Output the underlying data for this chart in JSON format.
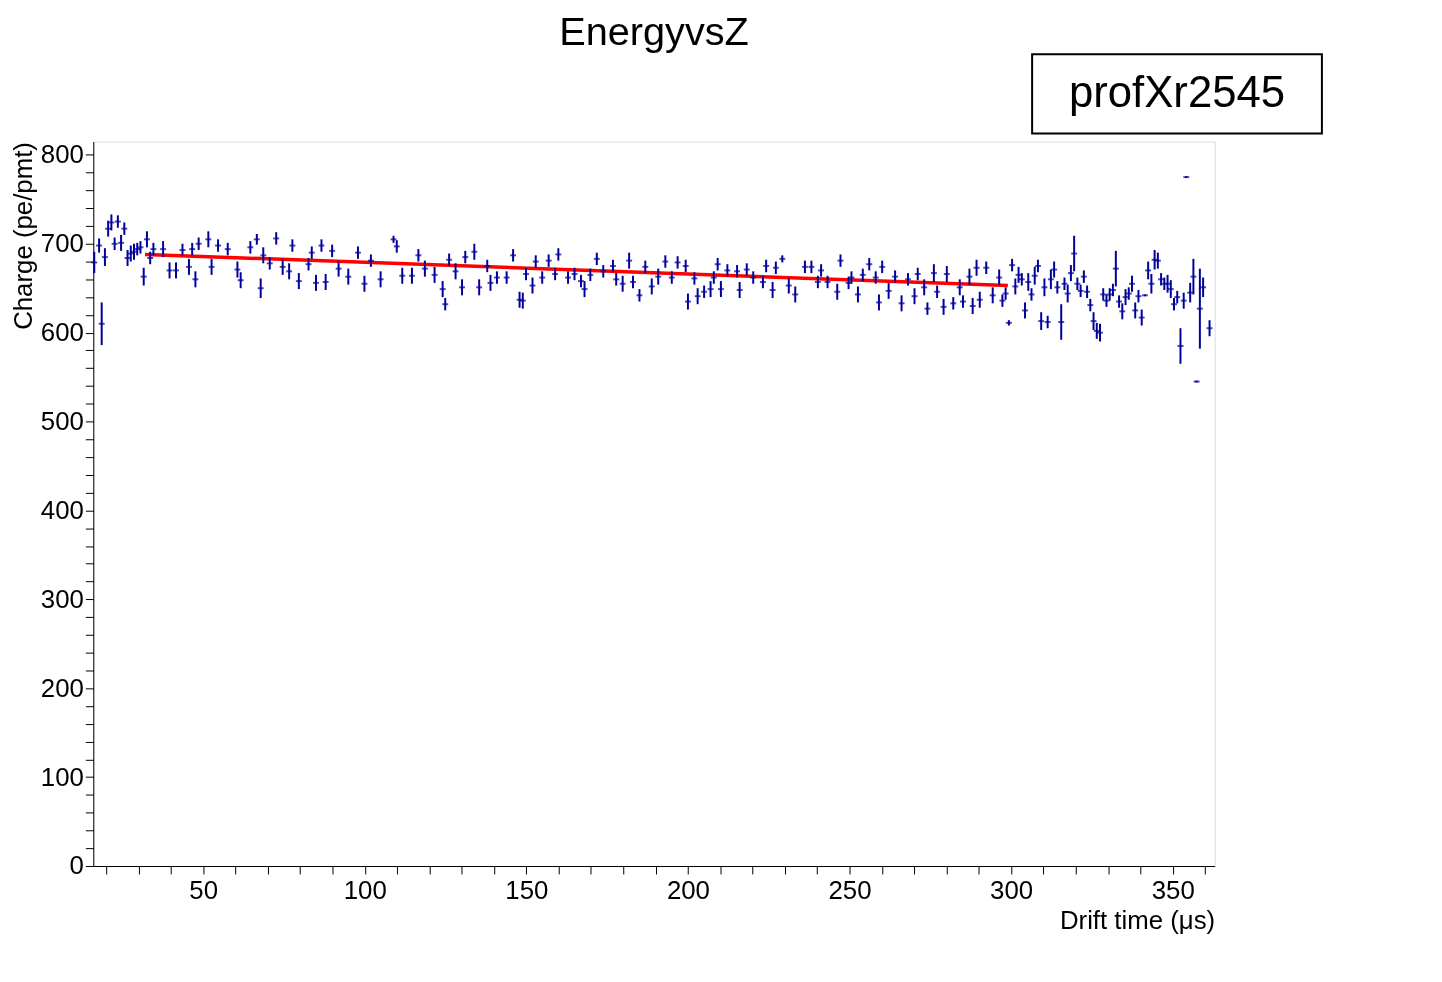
{
  "chart_data": {
    "type": "scatter",
    "title": "EnergyvsZ",
    "xlabel": "Drift time (μs)",
    "ylabel": "Charge (pe/pmt)",
    "annotations": [
      "profXr2545"
    ],
    "xlim": [
      16,
      363
    ],
    "ylim": [
      0,
      815
    ],
    "xticks": [
      {
        "value": 20,
        "label": null
      },
      {
        "value": 30,
        "label": null
      },
      {
        "value": 40,
        "label": null
      },
      50,
      {
        "value": 60,
        "label": null
      },
      {
        "value": 70,
        "label": null
      },
      {
        "value": 80,
        "label": null
      },
      {
        "value": 90,
        "label": null
      },
      100,
      {
        "value": 110,
        "label": null
      },
      {
        "value": 120,
        "label": null
      },
      {
        "value": 130,
        "label": null
      },
      {
        "value": 140,
        "label": null
      },
      150,
      {
        "value": 160,
        "label": null
      },
      {
        "value": 170,
        "label": null
      },
      {
        "value": 180,
        "label": null
      },
      {
        "value": 190,
        "label": null
      },
      200,
      {
        "value": 210,
        "label": null
      },
      {
        "value": 220,
        "label": null
      },
      {
        "value": 230,
        "label": null
      },
      {
        "value": 240,
        "label": null
      },
      250,
      {
        "value": 260,
        "label": null
      },
      {
        "value": 270,
        "label": null
      },
      {
        "value": 280,
        "label": null
      },
      {
        "value": 290,
        "label": null
      },
      300,
      {
        "value": 310,
        "label": null
      },
      {
        "value": 320,
        "label": null
      },
      {
        "value": 330,
        "label": null
      },
      {
        "value": 340,
        "label": null
      },
      350,
      {
        "value": 360,
        "label": null
      }
    ],
    "yticks": [
      0,
      {
        "value": 20,
        "label": null
      },
      {
        "value": 40,
        "label": null
      },
      {
        "value": 60,
        "label": null
      },
      {
        "value": 80,
        "label": null
      },
      100,
      {
        "value": 120,
        "label": null
      },
      {
        "value": 140,
        "label": null
      },
      {
        "value": 160,
        "label": null
      },
      {
        "value": 180,
        "label": null
      },
      200,
      {
        "value": 220,
        "label": null
      },
      {
        "value": 240,
        "label": null
      },
      {
        "value": 260,
        "label": null
      },
      {
        "value": 280,
        "label": null
      },
      300,
      {
        "value": 320,
        "label": null
      },
      {
        "value": 340,
        "label": null
      },
      {
        "value": 360,
        "label": null
      },
      {
        "value": 380,
        "label": null
      },
      400,
      {
        "value": 420,
        "label": null
      },
      {
        "value": 440,
        "label": null
      },
      {
        "value": 460,
        "label": null
      },
      {
        "value": 480,
        "label": null
      },
      500,
      {
        "value": 520,
        "label": null
      },
      {
        "value": 540,
        "label": null
      },
      {
        "value": 560,
        "label": null
      },
      {
        "value": 580,
        "label": null
      },
      600,
      {
        "value": 620,
        "label": null
      },
      {
        "value": 640,
        "label": null
      },
      {
        "value": 660,
        "label": null
      },
      {
        "value": 680,
        "label": null
      },
      700,
      {
        "value": 720,
        "label": null
      },
      {
        "value": 740,
        "label": null
      },
      {
        "value": 760,
        "label": null
      },
      {
        "value": 780,
        "label": null
      },
      800
    ],
    "grid": false,
    "legend": false,
    "series": [
      {
        "color": "#000099",
        "x": [
          16.3,
          17.8,
          18.6,
          19.6,
          20.6,
          21.6,
          22.6,
          23.6,
          24.6,
          25.6,
          26.6,
          27.6,
          28.6,
          29.6,
          30.6,
          31.6,
          32.6,
          33.6,
          34.6,
          37.6,
          39.6,
          41.6,
          43.6,
          45.6,
          46.6,
          47.6,
          48.6,
          51.6,
          52.6,
          54.6,
          57.6,
          60.6,
          61.6,
          64.6,
          66.6,
          67.8,
          68.6,
          70.6,
          72.6,
          74.6,
          76.6,
          77.6,
          79.6,
          82.6,
          83.6,
          84.9,
          86.6,
          87.9,
          89.9,
          91.9,
          94.9,
          97.9,
          99.9,
          101.9,
          104.9,
          108.9,
          109.9,
          111.6,
          114.6,
          116.6,
          118.6,
          121.6,
          124.1,
          124.9,
          126.1,
          128.1,
          130.1,
          131.1,
          133.9,
          135.4,
          137.9,
          138.9,
          140.9,
          143.9,
          145.9,
          147.9,
          148.9,
          149.9,
          151.9,
          152.9,
          154.9,
          156.9,
          158.9,
          159.9,
          162.9,
          164.9,
          166.9,
          168.0,
          169.8,
          171.8,
          173.8,
          176.8,
          177.8,
          179.8,
          181.8,
          183.0,
          185.0,
          186.8,
          188.8,
          190.8,
          193.0,
          195.0,
          196.8,
          199.3,
          200.0,
          202.0,
          203.0,
          205.0,
          207.0,
          208.0,
          209.2,
          210.2,
          212.2,
          215.2,
          216.0,
          218.2,
          220.2,
          223.2,
          224.2,
          226.2,
          227.2,
          229.2,
          231.2,
          233.2,
          236.2,
          238.2,
          240.2,
          241.2,
          243.2,
          246.2,
          247.2,
          249.7,
          250.6,
          252.6,
          254.1,
          256.1,
          258.1,
          259.1,
          260.1,
          262.1,
          264.1,
          266.1,
          268.1,
          270.1,
          271.1,
          273.1,
          274.1,
          276.1,
          277.1,
          279.1,
          280.1,
          282.1,
          284.1,
          285.1,
          287.1,
          288.1,
          289.3,
          290.3,
          292.3,
          294.3,
          296.3,
          297.3,
          298.3,
          299.3,
          300.3,
          301.3,
          302.3,
          303.3,
          304.3,
          305.3,
          306.3,
          307.3,
          308.3,
          309.3,
          310.3,
          311.3,
          312.3,
          313.3,
          314.3,
          315.5,
          316.5,
          317.5,
          318.5,
          319.5,
          320.5,
          321.5,
          322.5,
          323.5,
          324.5,
          325.5,
          326.5,
          327.5,
          328.5,
          329.5,
          330.5,
          331.5,
          332.4,
          333.4,
          334.4,
          335.4,
          336.4,
          337.4,
          338.4,
          339.4,
          340.4,
          341.4,
          342.4,
          343.4,
          344.4,
          345.4,
          346.4,
          347.4,
          348.4,
          349.4,
          350.4,
          351.4,
          352.4,
          353.4,
          354.2,
          355.4,
          356.4,
          357.4,
          358.4,
          359.4,
          361.4
        ],
        "values": [
          679,
          698,
          610,
          685,
          717,
          724,
          700,
          725,
          701,
          717,
          684,
          689,
          691,
          694,
          696,
          663,
          705,
          684,
          694,
          694,
          670,
          670,
          693,
          674,
          694,
          660,
          700,
          705,
          674,
          698,
          694,
          671,
          659,
          696,
          705,
          650,
          687,
          678,
          706,
          674,
          669,
          698,
          658,
          677,
          690,
          656,
          698,
          657,
          692,
          672,
          663,
          690,
          655,
          681,
          660,
          705,
          697,
          664,
          664,
          687,
          672,
          665,
          649,
          632,
          682,
          669,
          651,
          685,
          691,
          651,
          675,
          656,
          662,
          662,
          687,
          637,
          636,
          666,
          653,
          680,
          662,
          681,
          666,
          688,
          662,
          666,
          658,
          649,
          665,
          683,
          669,
          675,
          660,
          655,
          681,
          657,
          642,
          674,
          652,
          663,
          680,
          662,
          679,
          675,
          635,
          661,
          641,
          646,
          649,
          662,
          677,
          649,
          670,
          669,
          648,
          671,
          662,
          657,
          675,
          648,
          673,
          683,
          653,
          643,
          674,
          674,
          657,
          670,
          657,
          646,
          681,
          656,
          662,
          643,
          665,
          677,
          662,
          634,
          674,
          647,
          663,
          633,
          660,
          641,
          666,
          651,
          627,
          667,
          646,
          629,
          666,
          633,
          651,
          635,
          663,
          630,
          673,
          637,
          673,
          642,
          662,
          636,
          644,
          611,
          676,
          652,
          665,
          660,
          625,
          657,
          643,
          664,
          675,
          613,
          651,
          612,
          660,
          671,
          651,
          612,
          655,
          644,
          667,
          689,
          655,
          647,
          663,
          646,
          631,
          613,
          602,
          600,
          643,
          636,
          643,
          648,
          672,
          635,
          624,
          640,
          644,
          655,
          625,
          641,
          617,
          642,
          670,
          655,
          682,
          681,
          660,
          655,
          655,
          649,
          632,
          640,
          585,
          636,
          775,
          645,
          663,
          545,
          627,
          651,
          605
        ],
        "errors": [
          12,
          8,
          24,
          10,
          9,
          9,
          7,
          7,
          9,
          7,
          9,
          9,
          9,
          7,
          7,
          10,
          9,
          7,
          7,
          9,
          9,
          9,
          7,
          9,
          7,
          9,
          7,
          9,
          9,
          7,
          7,
          9,
          9,
          7,
          6,
          11,
          9,
          7,
          7,
          9,
          9,
          7,
          9,
          7,
          7,
          9,
          7,
          9,
          7,
          9,
          9,
          7,
          9,
          7,
          9,
          4,
          7,
          9,
          9,
          7,
          9,
          9,
          9,
          7,
          7,
          9,
          9,
          7,
          9,
          9,
          7,
          9,
          7,
          7,
          7,
          9,
          9,
          7,
          9,
          7,
          7,
          7,
          7,
          7,
          7,
          7,
          7,
          9,
          7,
          7,
          7,
          7,
          7,
          9,
          9,
          7,
          7,
          7,
          9,
          9,
          7,
          7,
          7,
          7,
          9,
          7,
          9,
          7,
          9,
          7,
          7,
          9,
          7,
          7,
          9,
          7,
          7,
          7,
          7,
          9,
          7,
          4,
          9,
          9,
          7,
          7,
          7,
          7,
          7,
          9,
          7,
          7,
          7,
          9,
          7,
          7,
          7,
          9,
          7,
          9,
          7,
          9,
          7,
          9,
          7,
          9,
          7,
          10,
          7,
          9,
          9,
          7,
          9,
          7,
          9,
          9,
          9,
          9,
          7,
          9,
          9,
          7,
          7,
          3,
          7,
          9,
          9,
          7,
          9,
          10,
          7,
          10,
          7,
          10,
          10,
          7,
          11,
          9,
          7,
          20,
          7,
          10,
          9,
          20,
          7,
          7,
          7,
          7,
          7,
          10,
          9,
          10,
          7,
          7,
          7,
          7,
          20,
          7,
          9,
          9,
          7,
          9,
          9,
          7,
          9,
          1,
          10,
          11,
          11,
          9,
          7,
          7,
          10,
          10,
          7,
          7,
          20,
          9,
          1,
          11,
          20,
          1,
          45,
          11,
          9
        ]
      },
      {
        "type": "line",
        "color": "#ff0000",
        "x": [
          32,
          299
        ],
        "values": [
          688,
          653
        ]
      }
    ]
  }
}
